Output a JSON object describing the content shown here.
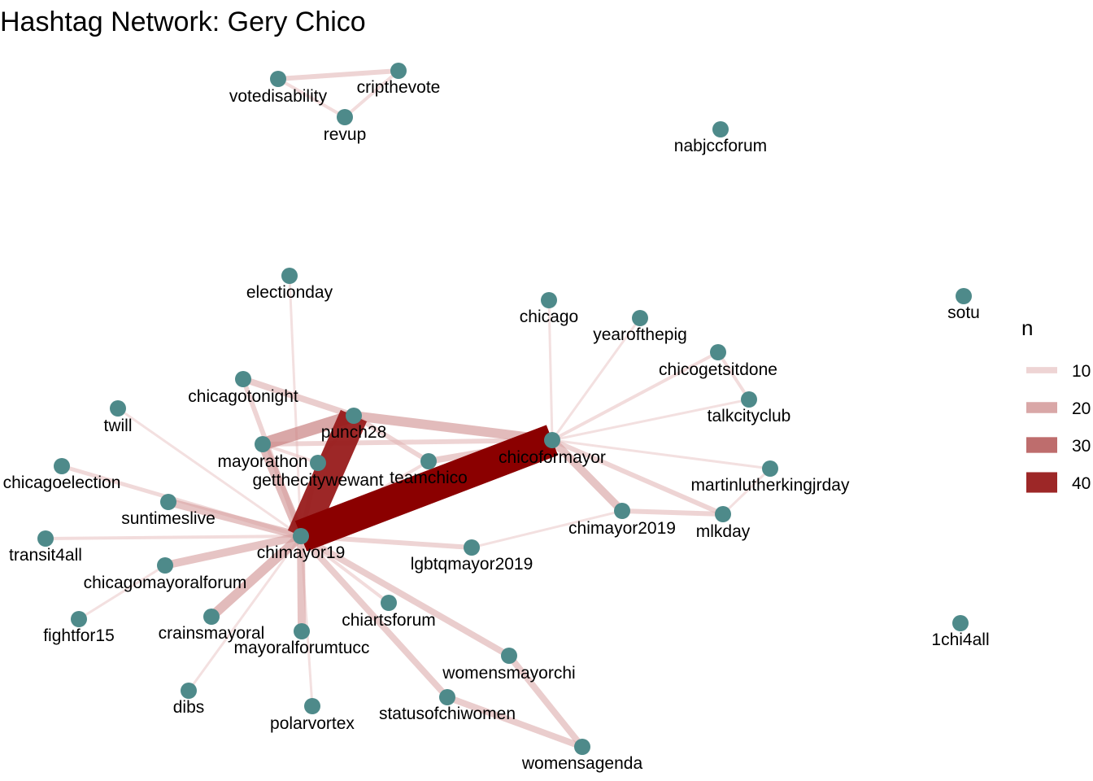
{
  "title": "Hashtag Network: Gery Chico",
  "colors": {
    "node": "#4e8a8a",
    "edge_low": "#e9c6c6",
    "edge_high": "#8b0000",
    "background": "#ffffff"
  },
  "legend": {
    "title": "n",
    "entries": [
      {
        "label": "10",
        "value": 10
      },
      {
        "label": "20",
        "value": 20
      },
      {
        "label": "30",
        "value": 30
      },
      {
        "label": "40",
        "value": 40
      }
    ]
  },
  "nodes": [
    {
      "id": "votedisability",
      "label": "votedisability"
    },
    {
      "id": "cripthevote",
      "label": "cripthevote"
    },
    {
      "id": "revup",
      "label": "revup"
    },
    {
      "id": "nabjccforum",
      "label": "nabjccforum"
    },
    {
      "id": "electionday",
      "label": "electionday"
    },
    {
      "id": "chicago",
      "label": "chicago"
    },
    {
      "id": "yearofthepig",
      "label": "yearofthepig"
    },
    {
      "id": "sotu",
      "label": "sotu"
    },
    {
      "id": "chicogetsitdone",
      "label": "chicogetsitdone"
    },
    {
      "id": "talkcityclub",
      "label": "talkcityclub"
    },
    {
      "id": "chicagotonight",
      "label": "chicagotonight"
    },
    {
      "id": "twill",
      "label": "twill"
    },
    {
      "id": "punch28",
      "label": "punch28"
    },
    {
      "id": "chicoformayor",
      "label": "chicoformayor"
    },
    {
      "id": "mayorathon",
      "label": "mayorathon"
    },
    {
      "id": "getthecitywewant",
      "label": "getthecitywewant"
    },
    {
      "id": "teamchico",
      "label": "teamchico"
    },
    {
      "id": "chicagoelection",
      "label": "chicagoelection"
    },
    {
      "id": "martinlutherkingjrday",
      "label": "martinlutherkingjrday"
    },
    {
      "id": "suntimeslive",
      "label": "suntimeslive"
    },
    {
      "id": "chimayor2019",
      "label": "chimayor2019"
    },
    {
      "id": "mlkday",
      "label": "mlkday"
    },
    {
      "id": "transit4all",
      "label": "transit4all"
    },
    {
      "id": "chimayor19",
      "label": "chimayor19"
    },
    {
      "id": "lgbtqmayor2019",
      "label": "lgbtqmayor2019"
    },
    {
      "id": "chicagomayoralforum",
      "label": "chicagomayoralforum"
    },
    {
      "id": "chiartsforum",
      "label": "chiartsforum"
    },
    {
      "id": "fightfor15",
      "label": "fightfor15"
    },
    {
      "id": "crainsmayoral",
      "label": "crainsmayoral"
    },
    {
      "id": "mayoralforumtucc",
      "label": "mayoralforumtucc"
    },
    {
      "id": "1chi4all",
      "label": "1chi4all"
    },
    {
      "id": "womensmayorchi",
      "label": "womensmayorchi"
    },
    {
      "id": "dibs",
      "label": "dibs"
    },
    {
      "id": "statusofchiwomen",
      "label": "statusofchiwomen"
    },
    {
      "id": "polarvortex",
      "label": "polarvortex"
    },
    {
      "id": "womensagenda",
      "label": "womensagenda"
    }
  ],
  "edges": [
    {
      "source": "votedisability",
      "target": "cripthevote",
      "n": 10
    },
    {
      "source": "votedisability",
      "target": "revup",
      "n": 8
    },
    {
      "source": "revup",
      "target": "cripthevote",
      "n": 8
    },
    {
      "source": "chimayor19",
      "target": "chicoformayor",
      "n": 45
    },
    {
      "source": "chimayor19",
      "target": "punch28",
      "n": 40
    },
    {
      "source": "punch28",
      "target": "chicoformayor",
      "n": 16
    },
    {
      "source": "mayorathon",
      "target": "punch28",
      "n": 20
    },
    {
      "source": "mayorathon",
      "target": "chimayor19",
      "n": 16
    },
    {
      "source": "mayorathon",
      "target": "chicoformayor",
      "n": 10
    },
    {
      "source": "getthecitywewant",
      "target": "chimayor19",
      "n": 10
    },
    {
      "source": "getthecitywewant",
      "target": "punch28",
      "n": 8
    },
    {
      "source": "getthecitywewant",
      "target": "mayorathon",
      "n": 8
    },
    {
      "source": "teamchico",
      "target": "chicoformayor",
      "n": 12
    },
    {
      "source": "teamchico",
      "target": "punch28",
      "n": 10
    },
    {
      "source": "teamchico",
      "target": "chimayor19",
      "n": 8
    },
    {
      "source": "chicagotonight",
      "target": "punch28",
      "n": 12
    },
    {
      "source": "chicagotonight",
      "target": "chimayor19",
      "n": 10
    },
    {
      "source": "electionday",
      "target": "chimayor19",
      "n": 7
    },
    {
      "source": "chicago",
      "target": "chicoformayor",
      "n": 7
    },
    {
      "source": "yearofthepig",
      "target": "chicoformayor",
      "n": 7
    },
    {
      "source": "chicogetsitdone",
      "target": "chicoformayor",
      "n": 8
    },
    {
      "source": "chicogetsitdone",
      "target": "talkcityclub",
      "n": 8
    },
    {
      "source": "talkcityclub",
      "target": "chicoformayor",
      "n": 7
    },
    {
      "source": "martinlutherkingjrday",
      "target": "chicoformayor",
      "n": 7
    },
    {
      "source": "martinlutherkingjrday",
      "target": "mlkday",
      "n": 7
    },
    {
      "source": "chicoformayor",
      "target": "chimayor2019",
      "n": 14
    },
    {
      "source": "chicoformayor",
      "target": "mlkday",
      "n": 10
    },
    {
      "source": "chimayor2019",
      "target": "mlkday",
      "n": 10
    },
    {
      "source": "chimayor2019",
      "target": "lgbtqmayor2019",
      "n": 7
    },
    {
      "source": "twill",
      "target": "chimayor19",
      "n": 7
    },
    {
      "source": "chicagoelection",
      "target": "chimayor19",
      "n": 9
    },
    {
      "source": "suntimeslive",
      "target": "chimayor19",
      "n": 14
    },
    {
      "source": "transit4all",
      "target": "chimayor19",
      "n": 8
    },
    {
      "source": "lgbtqmayor2019",
      "target": "chimayor19",
      "n": 10
    },
    {
      "source": "chicagomayoralforum",
      "target": "chimayor19",
      "n": 14
    },
    {
      "source": "chicagomayoralforum",
      "target": "fightfor15",
      "n": 7
    },
    {
      "source": "crainsmayoral",
      "target": "chimayor19",
      "n": 16
    },
    {
      "source": "mayoralforumtucc",
      "target": "chimayor19",
      "n": 14
    },
    {
      "source": "chiartsforum",
      "target": "chimayor19",
      "n": 8
    },
    {
      "source": "dibs",
      "target": "chimayor19",
      "n": 7
    },
    {
      "source": "polarvortex",
      "target": "chimayor19",
      "n": 7
    },
    {
      "source": "womensmayorchi",
      "target": "chimayor19",
      "n": 12
    },
    {
      "source": "womensmayorchi",
      "target": "womensagenda",
      "n": 12
    },
    {
      "source": "statusofchiwomen",
      "target": "chimayor19",
      "n": 12
    },
    {
      "source": "statusofchiwomen",
      "target": "womensagenda",
      "n": 12
    }
  ]
}
